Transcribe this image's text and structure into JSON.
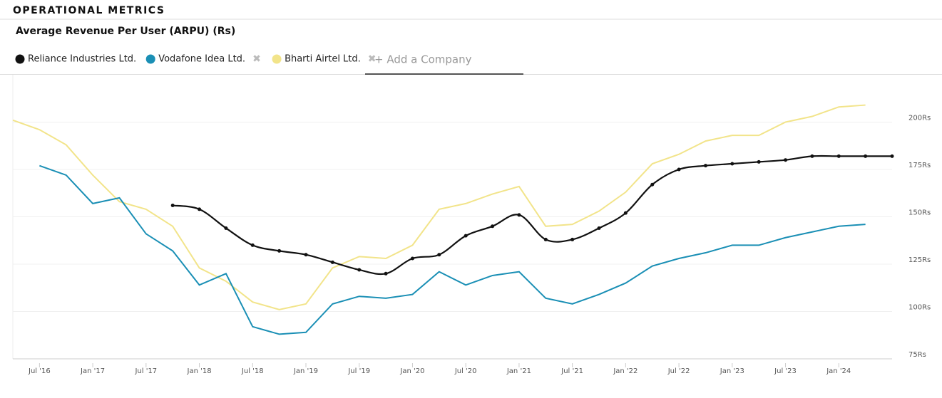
{
  "header": {
    "title": "OPERATIONAL METRICS"
  },
  "add_company": "+ Add a Company",
  "chart_data": {
    "type": "line",
    "title": "Average Revenue Per User (ARPU) (Rs)",
    "categories": [
      null,
      "Jul '16",
      null,
      "Jan '17",
      null,
      "Jul '17",
      null,
      "Jan '18",
      null,
      "Jul '18",
      null,
      "Jan '19",
      null,
      "Jul '19",
      null,
      "Jan '20",
      null,
      "Jul '20",
      null,
      "Jan '21",
      null,
      "Jul '21",
      null,
      "Jan '22",
      null,
      "Jul '22",
      null,
      "Jan '23",
      null,
      "Jul '23",
      null,
      "Jan '24",
      null,
      null
    ],
    "series": [
      {
        "name": "Reliance Industries Ltd.",
        "color": "#111111",
        "markers": true,
        "values": [
          null,
          null,
          null,
          null,
          null,
          null,
          156,
          154,
          144,
          135,
          132,
          130,
          126,
          122,
          120,
          128,
          130,
          140,
          145,
          151,
          138,
          138,
          144,
          152,
          167,
          175,
          177,
          178,
          179,
          180,
          182,
          182,
          182,
          182
        ]
      },
      {
        "name": "Vodafone Idea Ltd.",
        "color": "#1a8fb5",
        "markers": false,
        "values": [
          null,
          177,
          172,
          157,
          160,
          141,
          132,
          114,
          120,
          92,
          88,
          89,
          104,
          108,
          107,
          109,
          121,
          114,
          119,
          121,
          107,
          104,
          109,
          115,
          124,
          128,
          131,
          135,
          135,
          139,
          142,
          145,
          146,
          null
        ]
      },
      {
        "name": "Bharti Airtel Ltd.",
        "color": "#f2e48a",
        "markers": false,
        "values": [
          201,
          196,
          188,
          172,
          158,
          154,
          145,
          123,
          116,
          105,
          101,
          104,
          123,
          129,
          128,
          135,
          154,
          157,
          162,
          166,
          145,
          146,
          153,
          163,
          178,
          183,
          190,
          193,
          193,
          200,
          203,
          208,
          209,
          null
        ]
      }
    ],
    "ylim": [
      75,
      225
    ],
    "yticks": [
      {
        "value": 75,
        "label": "75Rs"
      },
      {
        "value": 100,
        "label": "100Rs"
      },
      {
        "value": 125,
        "label": "125Rs"
      },
      {
        "value": 150,
        "label": "150Rs"
      },
      {
        "value": 175,
        "label": "175Rs"
      },
      {
        "value": 200,
        "label": "200Rs"
      }
    ],
    "grid": true
  }
}
